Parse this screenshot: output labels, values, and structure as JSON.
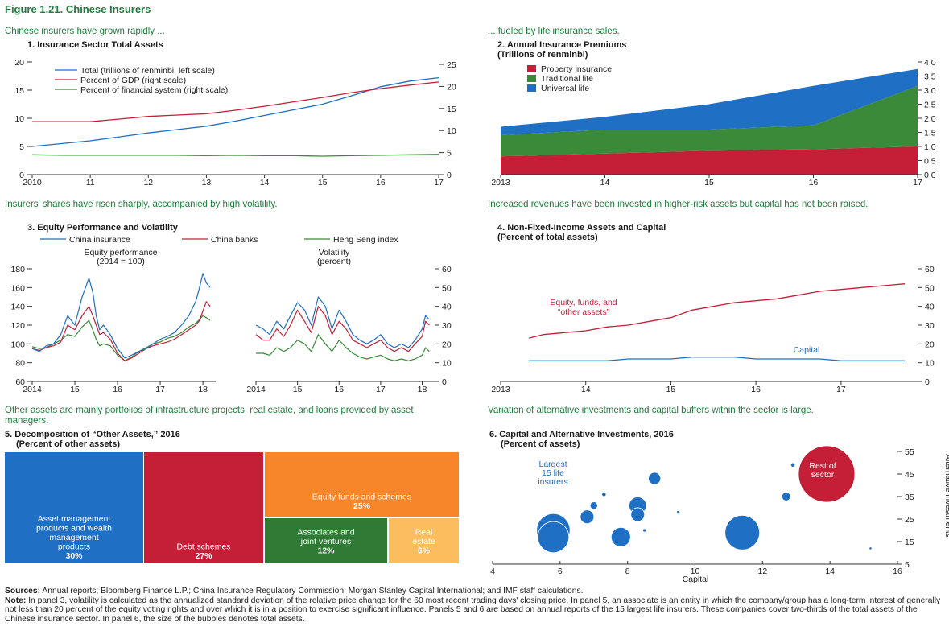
{
  "figure_title": "Figure 1.21. Chinese Insurers",
  "headlines": {
    "h1": "Chinese insurers have grown rapidly ...",
    "h2": "... fueled by life insurance sales.",
    "h3": "Insurers' shares have risen sharply, accompanied by high volatility.",
    "h4": "Increased revenues have been invested in higher-risk assets but capital has not been raised.",
    "h5": "Other assets are mainly portfolios of infrastructure projects, real estate, and loans provided by asset managers.",
    "h6": "Variation of alternative investments and capital buffers within the sector is large."
  },
  "panel_titles": {
    "p1": "1. Insurance Sector Total Assets",
    "p2": "2. Annual Insurance Premiums",
    "p2_sub": "(Trillions of renminbi)",
    "p3": "3. Equity Performance and Volatility",
    "p4": "4. Non-Fixed-Income Assets and Capital",
    "p4_sub": "(Percent of total assets)",
    "p5": "5. Decomposition of “Other Assets,” 2016",
    "p5_sub": "(Percent of other assets)",
    "p6": "6. Capital and Alternative Investments, 2016",
    "p6_sub": "(Percent of assets)"
  },
  "colors": {
    "blue": "#1f6fc5",
    "red": "#c41f36",
    "green": "#3a8a3a",
    "orange": "#f7852a",
    "light_orange": "#fbbd5e",
    "dark_green": "#2f7a35",
    "headline_green": "#1f7a3c"
  },
  "chart_data": [
    {
      "type": "line",
      "panel": "1",
      "x": [
        2010,
        2010.5,
        2011,
        2011.5,
        2012,
        2012.5,
        2013,
        2013.5,
        2014,
        2014.5,
        2015,
        2015.5,
        2016,
        2016.5,
        2017
      ],
      "x_tick_labels": [
        "2010",
        "11",
        "12",
        "13",
        "14",
        "15",
        "16",
        "17"
      ],
      "series": [
        {
          "name": "Total (trillions of renminbi, left scale)",
          "axis": "left",
          "color": "#1f6fc5",
          "values": [
            5.0,
            5.5,
            6.0,
            6.7,
            7.4,
            8.0,
            8.6,
            9.5,
            10.5,
            11.5,
            12.5,
            14.0,
            15.6,
            16.6,
            17.2
          ]
        },
        {
          "name": "Percent of GDP (right scale)",
          "axis": "right",
          "color": "#c41f36",
          "values": [
            12.0,
            12.0,
            12.0,
            12.6,
            13.2,
            13.5,
            13.8,
            14.6,
            15.5,
            16.5,
            17.5,
            18.6,
            19.5,
            20.3,
            21.0
          ]
        },
        {
          "name": "Percent of financial system (right scale)",
          "axis": "right",
          "color": "#3a8a3a",
          "values": [
            4.5,
            4.4,
            4.4,
            4.4,
            4.4,
            4.4,
            4.3,
            4.4,
            4.3,
            4.3,
            4.2,
            4.3,
            4.4,
            4.5,
            4.6
          ]
        }
      ],
      "ylim_left": [
        0,
        20
      ],
      "yticks_left": [
        0,
        5,
        10,
        15,
        20
      ],
      "ylim_right": [
        0,
        25
      ],
      "yticks_right": [
        0,
        5,
        10,
        15,
        20,
        25
      ],
      "legend": "top-left"
    },
    {
      "type": "area",
      "stacked": true,
      "panel": "2",
      "x": [
        2013,
        2014,
        2015,
        2016,
        2017
      ],
      "x_tick_labels": [
        "2013",
        "14",
        "15",
        "16",
        "17"
      ],
      "series": [
        {
          "name": "Property insurance",
          "color": "#c41f36",
          "values": [
            0.65,
            0.75,
            0.85,
            0.9,
            1.0
          ]
        },
        {
          "name": "Traditional life",
          "color": "#3a8a3a",
          "values": [
            0.75,
            0.85,
            0.75,
            0.85,
            2.15
          ]
        },
        {
          "name": "Universal life",
          "color": "#1f6fc5",
          "values": [
            0.3,
            0.45,
            0.9,
            1.4,
            0.6
          ]
        }
      ],
      "ylim": [
        0,
        4.0
      ],
      "yticks": [
        0.0,
        0.5,
        1.0,
        1.5,
        2.0,
        2.5,
        3.0,
        3.5,
        4.0
      ],
      "legend": "top-left"
    },
    {
      "type": "line",
      "panel": "3a",
      "subtitle": "Equity performance (2014 = 100)",
      "subtitle_lines": [
        "Equity performance",
        "(2014 = 100)"
      ],
      "x": [
        2014.0,
        2014.17,
        2014.33,
        2014.5,
        2014.67,
        2014.83,
        2015.0,
        2015.17,
        2015.33,
        2015.42,
        2015.5,
        2015.58,
        2015.67,
        2015.83,
        2016.0,
        2016.17,
        2016.33,
        2016.5,
        2016.67,
        2016.83,
        2017.0,
        2017.17,
        2017.33,
        2017.5,
        2017.67,
        2017.83,
        2017.92,
        2018.0,
        2018.08,
        2018.17
      ],
      "x_tick_labels": [
        "2014",
        "15",
        "16",
        "17",
        "18"
      ],
      "series": [
        {
          "name": "China insurance",
          "color": "#1f6fc5",
          "values": [
            95,
            92,
            98,
            100,
            110,
            130,
            120,
            150,
            170,
            155,
            130,
            115,
            120,
            110,
            95,
            85,
            88,
            92,
            95,
            100,
            105,
            108,
            112,
            120,
            130,
            145,
            160,
            175,
            165,
            160
          ]
        },
        {
          "name": "China banks",
          "color": "#c41f36",
          "values": [
            95,
            93,
            96,
            98,
            102,
            120,
            115,
            130,
            140,
            130,
            120,
            110,
            112,
            105,
            90,
            82,
            85,
            90,
            95,
            98,
            100,
            102,
            105,
            110,
            115,
            120,
            125,
            135,
            145,
            140
          ]
        },
        {
          "name": "Heng Seng index",
          "color": "#3a8a3a",
          "values": [
            97,
            95,
            96,
            100,
            104,
            110,
            108,
            118,
            125,
            115,
            105,
            98,
            100,
            98,
            88,
            82,
            86,
            92,
            96,
            100,
            102,
            106,
            108,
            112,
            118,
            122,
            126,
            130,
            128,
            125
          ]
        }
      ],
      "ylim": [
        60,
        180
      ],
      "yticks": [
        60,
        80,
        100,
        120,
        140,
        160,
        180
      ],
      "legend": "top"
    },
    {
      "type": "line",
      "panel": "3b",
      "subtitle": "Volatility (percent)",
      "subtitle_lines": [
        "Volatility",
        "(percent)"
      ],
      "x": [
        2014.0,
        2014.17,
        2014.33,
        2014.5,
        2014.67,
        2014.83,
        2015.0,
        2015.17,
        2015.33,
        2015.5,
        2015.67,
        2015.83,
        2016.0,
        2016.17,
        2016.33,
        2016.5,
        2016.67,
        2016.83,
        2017.0,
        2017.17,
        2017.33,
        2017.5,
        2017.67,
        2017.83,
        2018.0,
        2018.08,
        2018.17
      ],
      "x_tick_labels": [
        "2014",
        "15",
        "16",
        "17",
        "18"
      ],
      "series": [
        {
          "name": "China insurance",
          "color": "#1f6fc5",
          "values": [
            30,
            28,
            25,
            32,
            28,
            35,
            42,
            38,
            30,
            45,
            40,
            28,
            38,
            32,
            25,
            22,
            20,
            22,
            25,
            20,
            18,
            20,
            18,
            22,
            28,
            35,
            33
          ]
        },
        {
          "name": "China banks",
          "color": "#c41f36",
          "values": [
            25,
            22,
            22,
            28,
            24,
            30,
            38,
            32,
            26,
            40,
            35,
            25,
            32,
            28,
            22,
            20,
            18,
            20,
            22,
            18,
            16,
            18,
            16,
            20,
            24,
            32,
            30
          ]
        },
        {
          "name": "Heng Seng index",
          "color": "#3a8a3a",
          "values": [
            15,
            15,
            14,
            18,
            16,
            18,
            22,
            20,
            16,
            25,
            20,
            16,
            22,
            18,
            15,
            13,
            12,
            13,
            14,
            12,
            11,
            12,
            11,
            12,
            14,
            18,
            16
          ]
        }
      ],
      "ylim": [
        0,
        60
      ],
      "yticks": [
        0,
        10,
        20,
        30,
        40,
        50,
        60
      ]
    },
    {
      "type": "line",
      "panel": "4",
      "x": [
        2013.33,
        2013.5,
        2013.75,
        2014.0,
        2014.25,
        2014.5,
        2014.75,
        2015.0,
        2015.25,
        2015.5,
        2015.75,
        2016.0,
        2016.25,
        2016.5,
        2016.75,
        2017.0,
        2017.25,
        2017.5,
        2017.75
      ],
      "x_tick_labels": [
        "2013",
        "14",
        "15",
        "16",
        "17"
      ],
      "series": [
        {
          "name": "Equity, funds, and “other assets”",
          "color": "#c41f36",
          "values": [
            23,
            25,
            26,
            27,
            29,
            30,
            32,
            34,
            38,
            40,
            42,
            43,
            44,
            46,
            48,
            49,
            50,
            51,
            52
          ]
        },
        {
          "name": "Capital",
          "color": "#1f6fc5",
          "values": [
            11,
            11,
            11,
            11,
            11,
            12,
            12,
            12,
            13,
            13,
            13,
            12,
            12,
            12,
            12,
            11,
            11,
            11,
            11
          ]
        }
      ],
      "ylim": [
        0,
        60
      ],
      "yticks": [
        0,
        10,
        20,
        30,
        40,
        50,
        60
      ]
    },
    {
      "type": "treemap",
      "panel": "5",
      "items": [
        {
          "label": "Asset management products and wealth management products",
          "label_lines": [
            "Asset management",
            "products and wealth",
            "management",
            "products"
          ],
          "value": 30,
          "color": "#1f6fc5"
        },
        {
          "label": "Debt schemes",
          "label_lines": [
            "Debt schemes"
          ],
          "value": 27,
          "color": "#c41f36"
        },
        {
          "label": "Equity funds and schemes",
          "label_lines": [
            "Equity funds and schemes"
          ],
          "value": 25,
          "color": "#f7852a"
        },
        {
          "label": "Associates and joint ventures",
          "label_lines": [
            "Associates and",
            "joint ventures"
          ],
          "value": 12,
          "color": "#2f7a35"
        },
        {
          "label": "Real estate",
          "label_lines": [
            "Real",
            "estate"
          ],
          "value": 6,
          "color": "#fbbd5e"
        }
      ],
      "value_labels": [
        "30%",
        "27%",
        "25%",
        "12%",
        "6%"
      ]
    },
    {
      "type": "scatter",
      "bubble": true,
      "panel": "6",
      "xlabel": "Capital",
      "ylabel": "Alternative investments",
      "xlim": [
        4,
        16
      ],
      "xticks": [
        4,
        6,
        8,
        10,
        12,
        14,
        16
      ],
      "ylim": [
        5,
        55
      ],
      "yticks": [
        5,
        15,
        25,
        35,
        45,
        55
      ],
      "points": [
        {
          "x": 5.8,
          "y": 20,
          "size": 3.0,
          "group": "Largest 15 life insurers"
        },
        {
          "x": 5.8,
          "y": 17,
          "size": 2.6,
          "group": "Largest 15 life insurers"
        },
        {
          "x": 6.8,
          "y": 26,
          "size": 0.5,
          "group": "Largest 15 life insurers"
        },
        {
          "x": 7.0,
          "y": 31,
          "size": 0.15,
          "group": "Largest 15 life insurers"
        },
        {
          "x": 7.3,
          "y": 36,
          "size": 0.05,
          "group": "Largest 15 life insurers"
        },
        {
          "x": 7.8,
          "y": 17,
          "size": 1.0,
          "group": "Largest 15 life insurers"
        },
        {
          "x": 8.3,
          "y": 31,
          "size": 0.8,
          "group": "Largest 15 life insurers"
        },
        {
          "x": 8.3,
          "y": 27,
          "size": 0.5,
          "group": "Largest 15 life insurers"
        },
        {
          "x": 8.5,
          "y": 20,
          "size": 0.03,
          "group": "Largest 15 life insurers"
        },
        {
          "x": 8.8,
          "y": 43,
          "size": 0.4,
          "group": "Largest 15 life insurers"
        },
        {
          "x": 9.5,
          "y": 28,
          "size": 0.03,
          "group": "Largest 15 life insurers"
        },
        {
          "x": 11.4,
          "y": 19,
          "size": 3.2,
          "group": "Largest 15 life insurers"
        },
        {
          "x": 12.7,
          "y": 35,
          "size": 0.2,
          "group": "Largest 15 life insurers"
        },
        {
          "x": 12.9,
          "y": 49,
          "size": 0.05,
          "group": "Largest 15 life insurers"
        },
        {
          "x": 15.2,
          "y": 12,
          "size": 0.02,
          "group": "Largest 15 life insurers"
        },
        {
          "x": 13.9,
          "y": 45,
          "size": 6.5,
          "group": "Rest of sector"
        }
      ],
      "annotations": {
        "largest": [
          "Largest",
          "15 life",
          "insurers"
        ],
        "rest": [
          "Rest of",
          "sector"
        ]
      }
    }
  ],
  "footer": {
    "sources_label": "Sources:",
    "sources": "Annual reports; Bloomberg Finance L.P.; China Insurance Regulatory Commission; Morgan Stanley Capital International; and IMF staff calculations.",
    "note_label": "Note:",
    "note": "In panel 3, volatility is calculated as the annualized standard deviation of the relative price change for the 60 most recent trading days' closing price. In panel 5, an associate is an entity in which the company/group has a long-term interest of generally not less than 20 percent of the equity voting rights and over which it is in a position to exercise significant influence. Panels 5 and 6 are based on annual reports of the 15 largest life insurers. These companies cover two-thirds of the total assets of the Chinese insurance sector. In panel 6, the size of the bubbles denotes total assets."
  }
}
